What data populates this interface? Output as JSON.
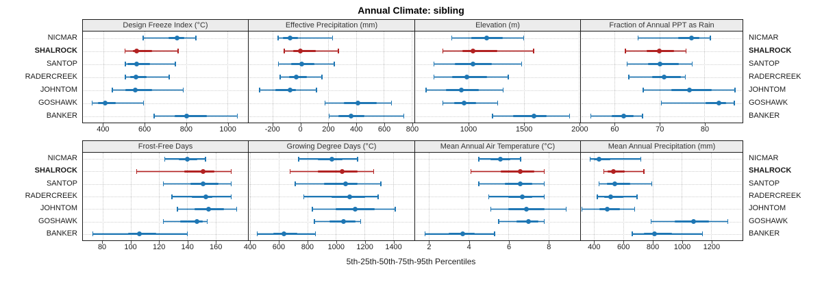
{
  "title": "Annual Climate: sibling",
  "caption": "5th-25th-50th-75th-95th Percentiles",
  "colors": {
    "series": "#1f77b4",
    "highlight": "#b22222",
    "strip_bg": "#ececec",
    "border": "#1a1a1a",
    "grid": "#c8c8c8"
  },
  "chart_data": {
    "type": "dotplot-lattice",
    "layout": {
      "rows": 2,
      "cols": 4,
      "grid": "dotted"
    },
    "percentile_levels": [
      5,
      25,
      50,
      75,
      95
    ],
    "stations": [
      "NICMAR",
      "SHALROCK",
      "SANTOP",
      "RADERCREEK",
      "JOHNTOM",
      "GOSHAWK",
      "BANKER"
    ],
    "highlight_station": "SHALROCK",
    "panels": [
      {
        "title": "Design Freeze Index (°C)",
        "xlim": [
          300,
          1100
        ],
        "ticks": [
          400,
          600,
          800,
          1000
        ],
        "values": {
          "NICMAR": [
            592,
            716,
            757,
            790,
            848
          ],
          "SHALROCK": [
            504,
            542,
            562,
            636,
            762
          ],
          "SANTOP": [
            505,
            517,
            560,
            625,
            748
          ],
          "RADERCREEK": [
            505,
            528,
            556,
            608,
            718
          ],
          "JOHNTOM": [
            443,
            505,
            553,
            634,
            787
          ],
          "GOSHAWK": [
            345,
            372,
            408,
            458,
            594
          ],
          "BANKER": [
            645,
            745,
            803,
            900,
            1048
          ]
        }
      },
      {
        "title": "Effective Precipitation (mm)",
        "xlim": [
          -370,
          820
        ],
        "ticks": [
          -200,
          0,
          200,
          400,
          600,
          800
        ],
        "values": {
          "NICMAR": [
            -158,
            -124,
            -71,
            -18,
            232
          ],
          "SHALROCK": [
            -114,
            -48,
            0,
            111,
            274
          ],
          "SANTOP": [
            -155,
            -64,
            9,
            103,
            244
          ],
          "RADERCREEK": [
            -144,
            -79,
            -29,
            50,
            156
          ],
          "JOHNTOM": [
            -291,
            -177,
            -71,
            -33,
            118
          ],
          "GOSHAWK": [
            179,
            315,
            414,
            550,
            656
          ],
          "BANKER": [
            209,
            274,
            365,
            463,
            744
          ]
        }
      },
      {
        "title": "Elevation (m)",
        "xlim": [
          520,
          2010
        ],
        "ticks": [
          1000,
          1500,
          2000
        ],
        "values": {
          "NICMAR": [
            850,
            1025,
            1165,
            1310,
            1500
          ],
          "SHALROCK": [
            770,
            945,
            1045,
            1260,
            1590
          ],
          "SANTOP": [
            690,
            880,
            1040,
            1210,
            1480
          ],
          "RADERCREEK": [
            690,
            855,
            985,
            1170,
            1360
          ],
          "JOHNTOM": [
            620,
            800,
            940,
            1095,
            1315
          ],
          "GOSHAWK": [
            770,
            870,
            965,
            1070,
            1265
          ],
          "BANKER": [
            1220,
            1405,
            1595,
            1710,
            1915
          ]
        }
      },
      {
        "title": "Fraction of Annual PPT as Rain",
        "xlim": [
          52.5,
          88.5
        ],
        "ticks": [
          60,
          70,
          80
        ],
        "values": {
          "NICMAR": [
            65.2,
            74.2,
            77.2,
            78.9,
            81.3
          ],
          "SHALROCK": [
            62.4,
            67.2,
            70.0,
            73.2,
            75.9
          ],
          "SANTOP": [
            62.8,
            67.4,
            70.1,
            74.3,
            77.3
          ],
          "RADERCREEK": [
            63.2,
            68.3,
            71.0,
            74.8,
            75.8
          ],
          "JOHNTOM": [
            66.4,
            72.7,
            76.7,
            81.7,
            86.8
          ],
          "GOSHAWK": [
            70.4,
            80.2,
            83.3,
            84.9,
            86.7
          ],
          "BANKER": [
            54.7,
            59.4,
            62.0,
            64.2,
            66.2
          ]
        }
      },
      {
        "title": "Frost-Free Days",
        "xlim": [
          66,
          183
        ],
        "ticks": [
          80,
          100,
          120,
          140,
          160
        ],
        "values": {
          "NICMAR": [
            124,
            134,
            140,
            147,
            153
          ],
          "SHALROCK": [
            104,
            138,
            151,
            159,
            171
          ],
          "SANTOP": [
            123,
            142,
            151,
            162,
            171
          ],
          "RADERCREEK": [
            129,
            143,
            153,
            158,
            171
          ],
          "JOHNTOM": [
            133,
            145,
            155,
            166,
            175
          ],
          "GOSHAWK": [
            123,
            135,
            147,
            151,
            154
          ],
          "BANKER": [
            73,
            98,
            106,
            118,
            140
          ]
        }
      },
      {
        "title": "Growing Degree Days (°C)",
        "xlim": [
          390,
          1550
        ],
        "ticks": [
          400,
          600,
          800,
          1000,
          1200,
          1400
        ],
        "values": {
          "NICMAR": [
            740,
            872,
            970,
            1046,
            1152
          ],
          "SHALROCK": [
            680,
            872,
            1043,
            1152,
            1265
          ],
          "SANTOP": [
            717,
            918,
            1069,
            1152,
            1315
          ],
          "RADERCREEK": [
            777,
            970,
            1096,
            1204,
            1295
          ],
          "JOHNTOM": [
            835,
            1000,
            1134,
            1272,
            1416
          ],
          "GOSHAWK": [
            850,
            955,
            1054,
            1137,
            1174
          ],
          "BANKER": [
            450,
            563,
            635,
            729,
            857
          ]
        }
      },
      {
        "title": "Mean Annual Air Temperature (°C)",
        "xlim": [
          1.3,
          9.6
        ],
        "ticks": [
          2,
          4,
          6,
          8
        ],
        "values": {
          "NICMAR": [
            4.5,
            5.1,
            5.6,
            6.1,
            6.6
          ],
          "SHALROCK": [
            4.1,
            5.6,
            6.6,
            7.3,
            7.8
          ],
          "SANTOP": [
            4.5,
            5.8,
            6.6,
            7.2,
            7.8
          ],
          "RADERCREEK": [
            5.0,
            6.0,
            6.7,
            7.2,
            7.8
          ],
          "JOHNTOM": [
            5.1,
            6.0,
            6.9,
            7.8,
            8.9
          ],
          "GOSHAWK": [
            5.5,
            6.4,
            7.0,
            7.5,
            7.8
          ],
          "BANKER": [
            1.8,
            3.0,
            3.7,
            4.3,
            5.3
          ]
        }
      },
      {
        "title": "Mean Annual Precipitation (mm)",
        "xlim": [
          310,
          1415
        ],
        "ticks": [
          400,
          600,
          800,
          1000,
          1200
        ],
        "values": {
          "NICMAR": [
            373,
            400,
            432,
            513,
            719
          ],
          "SHALROCK": [
            468,
            493,
            531,
            611,
            741
          ],
          "SANTOP": [
            435,
            487,
            542,
            645,
            795
          ],
          "RADERCREEK": [
            423,
            470,
            516,
            600,
            693
          ],
          "JOHNTOM": [
            317,
            437,
            490,
            575,
            678
          ],
          "GOSHAWK": [
            790,
            950,
            1080,
            1185,
            1315
          ],
          "BANKER": [
            660,
            740,
            815,
            935,
            1140
          ]
        }
      }
    ]
  }
}
